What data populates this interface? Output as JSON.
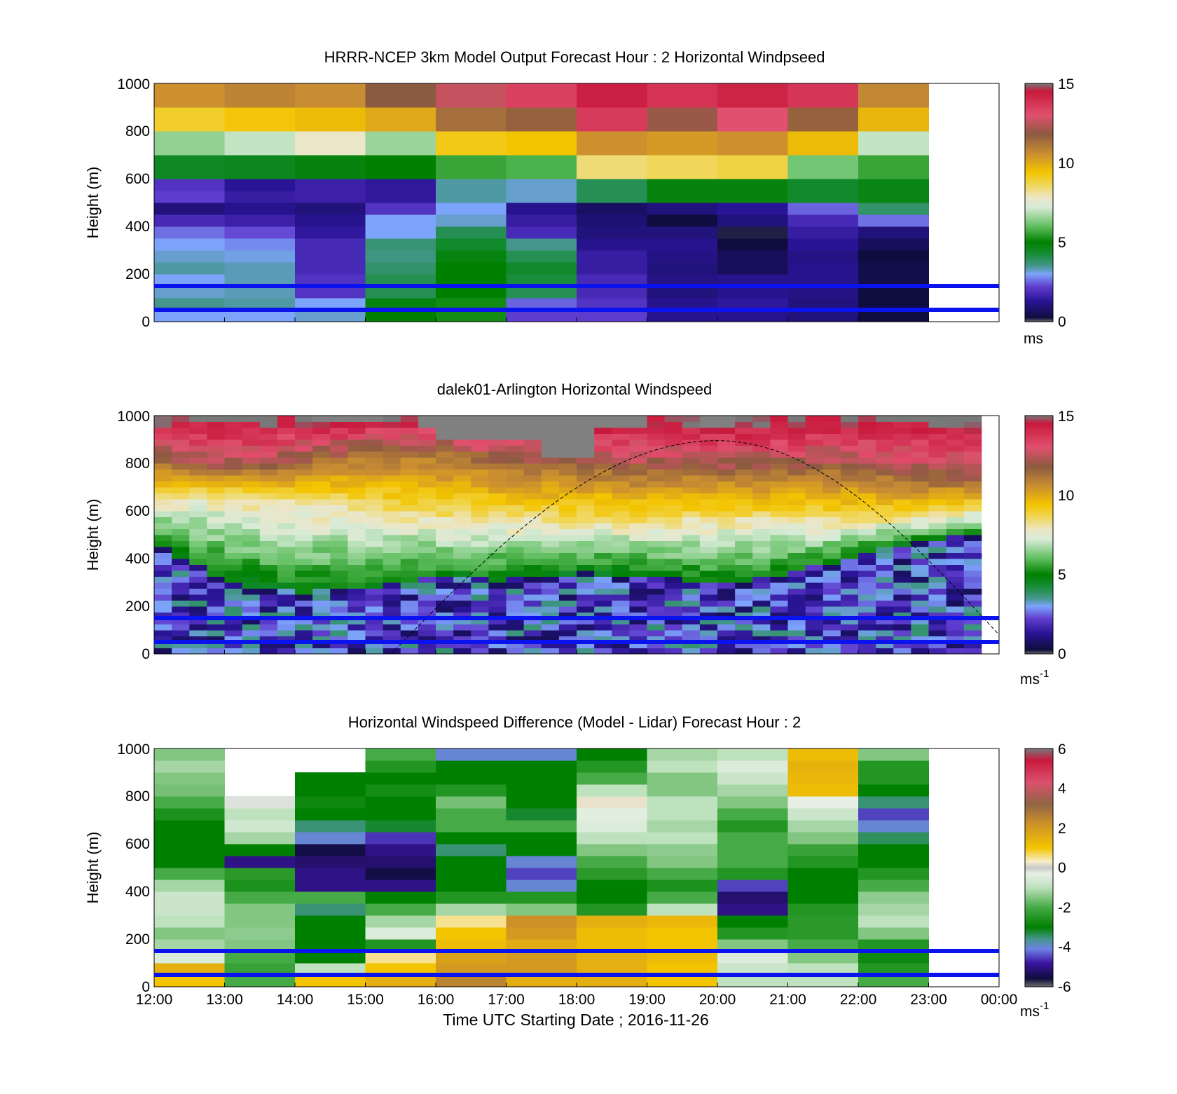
{
  "figure": {
    "xlabel": "Time UTC  Starting Date ; 2016-11-26",
    "x_tick_labels": [
      "12:00",
      "13:00",
      "14:00",
      "15:00",
      "16:00",
      "17:00",
      "18:00",
      "19:00",
      "20:00",
      "21:00",
      "22:00",
      "23:00",
      "00:00"
    ]
  },
  "chart_data": [
    {
      "type": "heatmap",
      "title": "HRRR-NCEP 3km Model Output   Forecast Hour : 2 Horizontal Windpseed",
      "ylabel": "Height (m)",
      "y_tick_labels": [
        "0",
        "200",
        "400",
        "600",
        "800",
        "1000"
      ],
      "ylim": [
        0,
        1000
      ],
      "xlim": [
        "12:00",
        "00:00"
      ],
      "colorbar": {
        "ticks": [
          "0",
          "5",
          "10",
          "15"
        ],
        "range": [
          0,
          15
        ],
        "unit": "ms"
      },
      "reference_lines_m": [
        50,
        150
      ],
      "heights_m": [
        25,
        75,
        125,
        175,
        225,
        275,
        325,
        375,
        425,
        475,
        525,
        575,
        625,
        675,
        725,
        775,
        825,
        875,
        925,
        975
      ],
      "columns": [
        {
          "time": "12:00",
          "values": [
            3.0,
            3.5,
            3.2,
            3.0,
            3.4,
            3.2,
            3.0,
            2.6,
            1.8,
            1.0,
            2.2,
            2.0,
            4.5,
            4.5,
            6.5,
            6.5,
            9.0,
            9.0,
            10.5,
            10.5
          ]
        },
        {
          "time": "13:00",
          "values": [
            3.0,
            3.4,
            3.3,
            3.3,
            3.3,
            3.1,
            2.8,
            2.3,
            1.6,
            1.2,
            1.5,
            1.3,
            4.6,
            4.6,
            7.0,
            7.0,
            9.3,
            9.3,
            10.8,
            10.8
          ]
        },
        {
          "time": "14:00",
          "values": [
            3.2,
            3.0,
            2.0,
            2.0,
            1.8,
            1.8,
            1.8,
            1.4,
            1.2,
            1.0,
            1.6,
            1.6,
            4.8,
            4.8,
            7.8,
            7.8,
            9.6,
            9.6,
            10.6,
            10.6
          ]
        },
        {
          "time": "15:00",
          "values": [
            5.0,
            4.8,
            4.0,
            4.0,
            3.8,
            3.6,
            3.7,
            3.0,
            3.0,
            2.0,
            1.4,
            1.4,
            5.0,
            5.0,
            6.6,
            6.6,
            10.0,
            10.0,
            11.8,
            11.8
          ]
        },
        {
          "time": "16:00",
          "values": [
            5.2,
            5.2,
            5.0,
            5.0,
            5.0,
            4.8,
            4.4,
            4.0,
            3.2,
            3.0,
            3.4,
            3.4,
            5.6,
            5.6,
            9.2,
            9.2,
            11.3,
            11.3,
            12.6,
            12.6
          ]
        },
        {
          "time": "17:00",
          "values": [
            2.2,
            2.5,
            4.0,
            4.2,
            4.4,
            4.0,
            3.5,
            1.8,
            1.5,
            1.2,
            3.2,
            3.2,
            5.8,
            5.8,
            9.4,
            9.4,
            11.6,
            11.6,
            13.4,
            13.4
          ]
        },
        {
          "time": "18:00",
          "values": [
            2.2,
            2.0,
            1.8,
            1.8,
            1.5,
            1.5,
            1.2,
            1.0,
            0.9,
            0.7,
            4.0,
            4.0,
            8.4,
            8.4,
            10.5,
            10.5,
            13.6,
            13.6,
            14.3,
            14.3
          ]
        },
        {
          "time": "19:00",
          "values": [
            1.2,
            1.2,
            1.0,
            1.1,
            1.0,
            1.1,
            1.2,
            1.0,
            0.3,
            1.0,
            4.8,
            4.8,
            8.6,
            8.6,
            10.3,
            10.3,
            12.0,
            12.0,
            13.8,
            13.8
          ]
        },
        {
          "time": "20:00",
          "values": [
            1.2,
            1.4,
            1.2,
            1.2,
            0.6,
            0.6,
            0.3,
            0.2,
            1.0,
            1.3,
            4.8,
            4.8,
            8.8,
            8.8,
            10.5,
            10.5,
            13.0,
            13.0,
            14.2,
            14.2
          ]
        },
        {
          "time": "21:00",
          "values": [
            1.0,
            1.0,
            1.1,
            1.2,
            1.2,
            1.1,
            1.3,
            1.5,
            1.8,
            2.5,
            4.4,
            4.4,
            6.2,
            6.2,
            9.6,
            9.6,
            11.6,
            11.6,
            13.7,
            13.7
          ]
        },
        {
          "time": "22:00",
          "values": [
            0.3,
            0.3,
            0.3,
            0.4,
            0.4,
            0.3,
            0.6,
            1.0,
            2.6,
            3.8,
            4.7,
            4.7,
            5.6,
            5.6,
            7.0,
            7.0,
            9.7,
            9.7,
            10.7,
            10.7
          ]
        }
      ]
    },
    {
      "type": "heatmap",
      "title": "dalek01-Arlington  Horizontal Windspeed",
      "ylabel": "Height (m)",
      "y_tick_labels": [
        "0",
        "200",
        "400",
        "600",
        "800",
        "1000"
      ],
      "ylim": [
        0,
        1000
      ],
      "xlim": [
        "12:00",
        "00:00"
      ],
      "colorbar": {
        "ticks": [
          "0",
          "5",
          "10",
          "15"
        ],
        "range": [
          0,
          15
        ],
        "unit": "ms",
        "unit_exponent": "-1"
      },
      "reference_lines_m": [
        50,
        150
      ],
      "overlay_curve": {
        "style": "dashed",
        "x": [
          "15:22",
          "20:00",
          "00:00"
        ],
        "y_m": [
          0,
          895,
          80
        ]
      },
      "no_data_cap_m": [
        {
          "start": "12:00",
          "end": "14:15",
          "top_m": 1000,
          "bottom_m": 1000
        },
        {
          "start": "14:15",
          "end": "15:15",
          "top_m": 1000,
          "bottom_m": 980
        },
        {
          "start": "15:45",
          "end": "16:00",
          "top_m": 1000,
          "bottom_m": 940
        },
        {
          "start": "16:00",
          "end": "17:30",
          "top_m": 1000,
          "bottom_m": 905
        },
        {
          "start": "17:30",
          "end": "18:15",
          "top_m": 1000,
          "bottom_m": 815
        },
        {
          "start": "18:15",
          "end": "19:00",
          "top_m": 1000,
          "bottom_m": 955
        },
        {
          "start": "19:45",
          "end": "20:15",
          "top_m": 1000,
          "bottom_m": 950
        }
      ],
      "profile_breakpoints_m": [
        {
          "time": "12:00",
          "yellow_top": 820,
          "green_top": 660,
          "blue_top": 470
        },
        {
          "time": "13:00",
          "yellow_top": 760,
          "green_top": 680,
          "blue_top": 300
        },
        {
          "time": "14:00",
          "yellow_top": 800,
          "green_top": 640,
          "blue_top": 260
        },
        {
          "time": "15:00",
          "yellow_top": 850,
          "green_top": 620,
          "blue_top": 270
        },
        {
          "time": "16:00",
          "yellow_top": 860,
          "green_top": 580,
          "blue_top": 320
        },
        {
          "time": "17:00",
          "yellow_top": 800,
          "green_top": 570,
          "blue_top": 310
        },
        {
          "time": "18:00",
          "yellow_top": 790,
          "green_top": 560,
          "blue_top": 340
        },
        {
          "time": "19:00",
          "yellow_top": 770,
          "green_top": 560,
          "blue_top": 330
        },
        {
          "time": "20:00",
          "yellow_top": 770,
          "green_top": 570,
          "blue_top": 290
        },
        {
          "time": "21:00",
          "yellow_top": 770,
          "green_top": 570,
          "blue_top": 330
        },
        {
          "time": "22:00",
          "yellow_top": 780,
          "green_top": 560,
          "blue_top": 420
        },
        {
          "time": "23:00",
          "yellow_top": 720,
          "green_top": 580,
          "blue_top": 480
        },
        {
          "time": "00:00",
          "yellow_top": 740,
          "green_top": 620,
          "blue_top": 500
        }
      ]
    },
    {
      "type": "heatmap",
      "title": "Horizontal Windspeed Difference (Model - Lidar) Forecast Hour : 2",
      "ylabel": "Height (m)",
      "y_tick_labels": [
        "0",
        "200",
        "400",
        "600",
        "800",
        "1000"
      ],
      "ylim": [
        0,
        1000
      ],
      "xlim": [
        "12:00",
        "00:00"
      ],
      "colorbar": {
        "ticks": [
          "-6",
          "-4",
          "-2",
          "0",
          "2",
          "4",
          "6"
        ],
        "range": [
          -6,
          6
        ],
        "unit": "ms",
        "unit_exponent": "-1"
      },
      "reference_lines_m": [
        50,
        150
      ],
      "heights_m": [
        25,
        75,
        125,
        175,
        225,
        275,
        325,
        375,
        425,
        475,
        525,
        575,
        625,
        675,
        725,
        775,
        825,
        875,
        925,
        975
      ],
      "columns": [
        {
          "time": "12:00",
          "values": [
            1.0,
            1.5,
            -0.5,
            -1.2,
            -1.5,
            -1.0,
            -0.8,
            -0.8,
            -1.2,
            -2.0,
            -3.0,
            -3.0,
            -3.0,
            -3.0,
            -2.6,
            -2.0,
            -1.6,
            -1.5,
            -1.2,
            -1.5
          ]
        },
        {
          "time": "13:00",
          "values": [
            -2.0,
            -2.2,
            -2.0,
            -1.5,
            -1.4,
            -1.5,
            -1.5,
            -2.0,
            -2.6,
            -2.4,
            -5.0,
            -3.0,
            -1.2,
            -0.7,
            -1.0,
            -0.2,
            null,
            null,
            null,
            null
          ]
        },
        {
          "time": "14:00",
          "values": [
            1.0,
            -1.0,
            -3.0,
            -3.0,
            -3.0,
            -3.0,
            -3.5,
            -2.0,
            -5.0,
            -5.0,
            -5.2,
            -5.5,
            -4.0,
            -3.5,
            -3.0,
            -2.8,
            -3.0,
            -3.0,
            null,
            null
          ]
        },
        {
          "time": "15:00",
          "values": [
            1.5,
            1.0,
            0.5,
            -2.5,
            -0.5,
            -1.2,
            -2.0,
            -3.0,
            -5.0,
            -5.5,
            -5.2,
            -5.0,
            -4.6,
            -3.2,
            -3.0,
            -3.0,
            -2.7,
            -3.0,
            -2.5,
            -2.0
          ]
        },
        {
          "time": "16:00",
          "values": [
            2.5,
            2.0,
            1.8,
            1.2,
            1.0,
            0.5,
            -1.2,
            -2.5,
            -3.0,
            -3.0,
            -3.0,
            -3.5,
            -3.0,
            -2.0,
            -2.0,
            -1.6,
            -2.5,
            -3.0,
            -3.0,
            -4.0
          ]
        },
        {
          "time": "17:00",
          "values": [
            1.5,
            2.0,
            2.0,
            1.6,
            2.0,
            2.2,
            -1.5,
            -2.5,
            -4.0,
            -4.5,
            -4.0,
            -3.0,
            -3.0,
            -2.0,
            -3.2,
            -3.0,
            -3.0,
            -3.0,
            -3.0,
            -4.0
          ]
        },
        {
          "time": "18:00",
          "values": [
            1.5,
            1.5,
            1.5,
            1.2,
            1.2,
            1.5,
            -2.5,
            -3.0,
            -3.0,
            -2.4,
            -2.0,
            -1.5,
            -1.0,
            -0.5,
            -0.4,
            0.2,
            -1.0,
            -2.0,
            -2.5,
            -3.0
          ]
        },
        {
          "time": "19:00",
          "values": [
            1.0,
            1.0,
            1.2,
            1.0,
            1.0,
            1.3,
            -1.0,
            -2.0,
            -2.6,
            -2.0,
            -1.5,
            -1.4,
            -1.0,
            -1.2,
            -1.0,
            -1.0,
            -1.5,
            -1.5,
            -1.0,
            -1.2
          ]
        },
        {
          "time": "20:00",
          "values": [
            -1.0,
            -0.8,
            -0.5,
            -1.5,
            -2.5,
            -3.0,
            -5.0,
            -5.2,
            -4.5,
            -2.5,
            -2.0,
            -2.0,
            -2.0,
            -2.5,
            -2.0,
            -1.5,
            -1.2,
            -0.8,
            -0.5,
            -1.0
          ]
        },
        {
          "time": "21:00",
          "values": [
            -1.0,
            -1.0,
            -1.5,
            -2.0,
            -2.4,
            -2.4,
            -2.5,
            -3.0,
            -3.0,
            -3.0,
            -2.5,
            -2.2,
            -1.5,
            -1.2,
            -0.8,
            -0.3,
            1.2,
            1.3,
            1.4,
            1.2
          ]
        },
        {
          "time": "22:00",
          "values": [
            -2.0,
            -2.5,
            -2.8,
            -2.5,
            -1.5,
            -1.0,
            -1.2,
            -1.4,
            -2.0,
            -2.5,
            -3.0,
            -3.0,
            -3.4,
            -4.0,
            -4.5,
            -3.5,
            -3.0,
            -2.5,
            -2.5,
            -1.5
          ]
        }
      ]
    }
  ]
}
